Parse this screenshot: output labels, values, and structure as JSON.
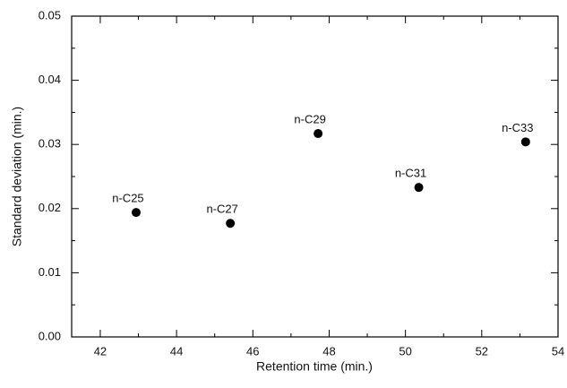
{
  "chart_data": {
    "type": "scatter",
    "xlabel": "Retention time (min.)",
    "ylabel": "Standard deviation (min.)",
    "x": [
      42.94,
      45.41,
      47.71,
      50.35,
      53.15
    ],
    "values": [
      0.0194,
      0.0177,
      0.0317,
      0.0233,
      0.0304
    ],
    "labels": [
      "n-C25",
      "n-C27",
      "n-C29",
      "n-C31",
      "n-C33"
    ],
    "color": "#000000",
    "xlim": [
      41.25,
      54
    ],
    "ylim": [
      0,
      0.05
    ],
    "xticks": [
      42,
      44,
      46,
      48,
      50,
      52,
      54
    ],
    "xticks_minor": [
      43,
      45,
      47,
      49,
      51,
      53
    ],
    "yticks": [
      {
        "value": 0,
        "label": "0.00"
      },
      {
        "value": 0.01,
        "label": "0.01"
      },
      {
        "value": 0.02,
        "label": "0.02"
      },
      {
        "value": 0.03,
        "label": "0.03"
      },
      {
        "value": 0.04,
        "label": "0.04"
      },
      {
        "value": 0.05,
        "label": "0.05"
      }
    ],
    "yticks_minor": [
      0.005,
      0.015,
      0.025,
      0.035,
      0.045
    ],
    "grid": false
  }
}
